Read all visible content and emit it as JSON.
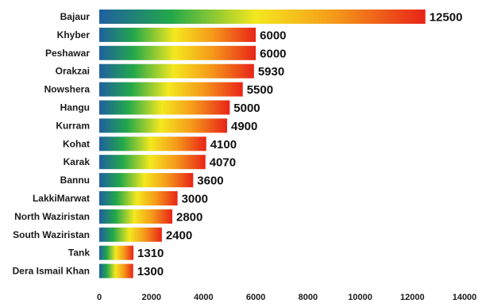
{
  "chart_data": {
    "type": "bar",
    "orientation": "horizontal",
    "categories": [
      "Bajaur",
      "Khyber",
      "Peshawar",
      "Orakzai",
      "Nowshera",
      "Hangu",
      "Kurram",
      "Kohat",
      "Karak",
      "Bannu",
      "LakkiMarwat",
      "North Waziristan",
      "South Waziristan",
      "Tank",
      "Dera Ismail Khan"
    ],
    "values": [
      12500,
      6000,
      6000,
      5930,
      5500,
      5000,
      4900,
      4100,
      4070,
      3600,
      3000,
      2800,
      2400,
      1310,
      1300
    ],
    "xlim": [
      0,
      14000
    ],
    "xticks": [
      0,
      2000,
      4000,
      6000,
      8000,
      10000,
      12000,
      14000
    ],
    "title": "",
    "xlabel": "",
    "ylabel": "",
    "grid": false,
    "legend": "none",
    "colors": {
      "gradient": [
        "#1f5fa0",
        "#22a84a",
        "#f4e81e",
        "#f59a1a",
        "#e82418"
      ],
      "text": "#111111"
    }
  }
}
